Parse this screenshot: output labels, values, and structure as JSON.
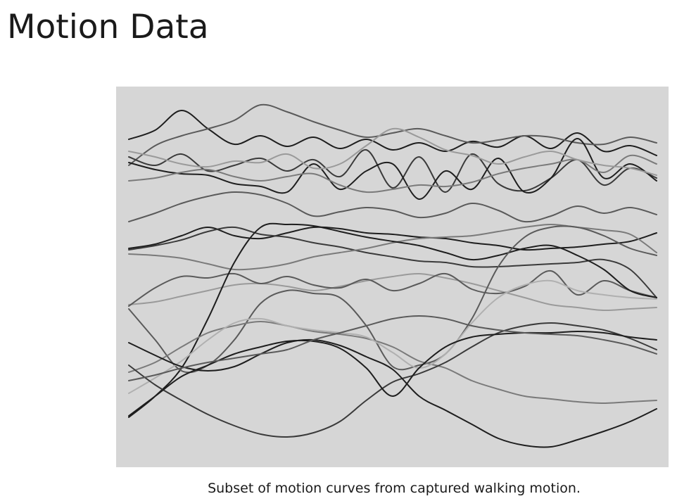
{
  "slide": {
    "title": "Motion Data",
    "caption": "Subset of motion curves from captured walking motion."
  },
  "figure": {
    "background_color": "#d6d6d6",
    "curve_colors": [
      "#1e1e1e",
      "#3a3a3a",
      "#5a5a5a",
      "#7a7a7a",
      "#9a9a9a",
      "#b0b0b0"
    ],
    "curve_count": 20
  }
}
